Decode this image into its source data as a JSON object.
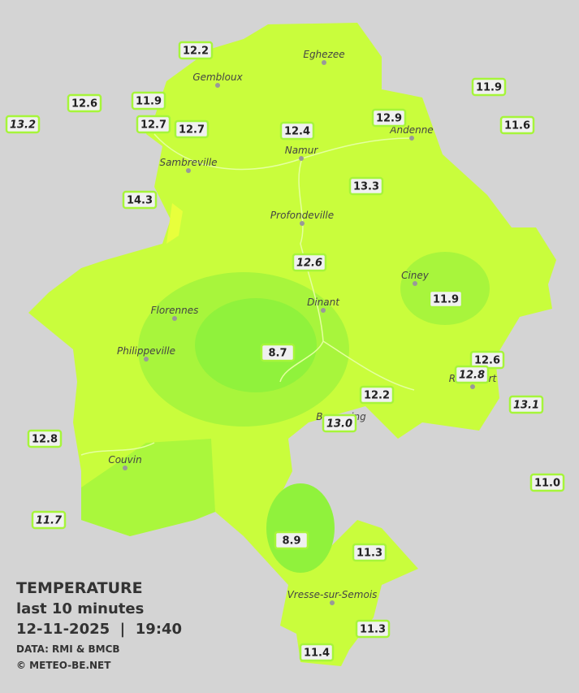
{
  "legend": {
    "title": "TEMPERATURE",
    "subtitle": "last 10 minutes",
    "datetime": "12-11-2025  |  19:40",
    "source": "DATA: RMI & BMCB",
    "credit": "© METEO-BE.NET"
  },
  "towns": [
    "Eghezee",
    "Gembloux",
    "Andenne",
    "Namur",
    "Sambreville",
    "Profondeville",
    "Ciney",
    "Dinant",
    "Florennes",
    "Philippeville",
    "Rochefort",
    "Beauraing",
    "Couvin",
    "Vresse-sur-Semois"
  ],
  "stations": [
    {
      "temp": 12.2,
      "italic": false
    },
    {
      "temp": 11.9,
      "italic": false
    },
    {
      "temp": 12.6,
      "italic": false
    },
    {
      "temp": 13.2,
      "italic": true
    },
    {
      "temp": 12.7,
      "italic": false
    },
    {
      "temp": 12.7,
      "italic": false
    },
    {
      "temp": 12.4,
      "italic": false
    },
    {
      "temp": 12.9,
      "italic": false
    },
    {
      "temp": 11.9,
      "italic": false
    },
    {
      "temp": 11.6,
      "italic": false
    },
    {
      "temp": 13.3,
      "italic": false
    },
    {
      "temp": 14.3,
      "italic": false
    },
    {
      "temp": 12.6,
      "italic": true
    },
    {
      "temp": 11.9,
      "italic": false
    },
    {
      "temp": 8.7,
      "italic": false
    },
    {
      "temp": 12.6,
      "italic": false
    },
    {
      "temp": 12.8,
      "italic": true
    },
    {
      "temp": 12.2,
      "italic": false
    },
    {
      "temp": 13,
      "label": "13.0",
      "italic": true
    },
    {
      "temp": 13.1,
      "italic": true
    },
    {
      "temp": 12.8,
      "italic": false
    },
    {
      "temp": 11,
      "label": "11.0",
      "italic": false
    },
    {
      "temp": 11.7,
      "italic": true
    },
    {
      "temp": 8.9,
      "italic": false
    },
    {
      "temp": 11.3,
      "italic": false
    },
    {
      "temp": 11.3,
      "italic": false
    },
    {
      "temp": 11.4,
      "italic": false
    }
  ]
}
